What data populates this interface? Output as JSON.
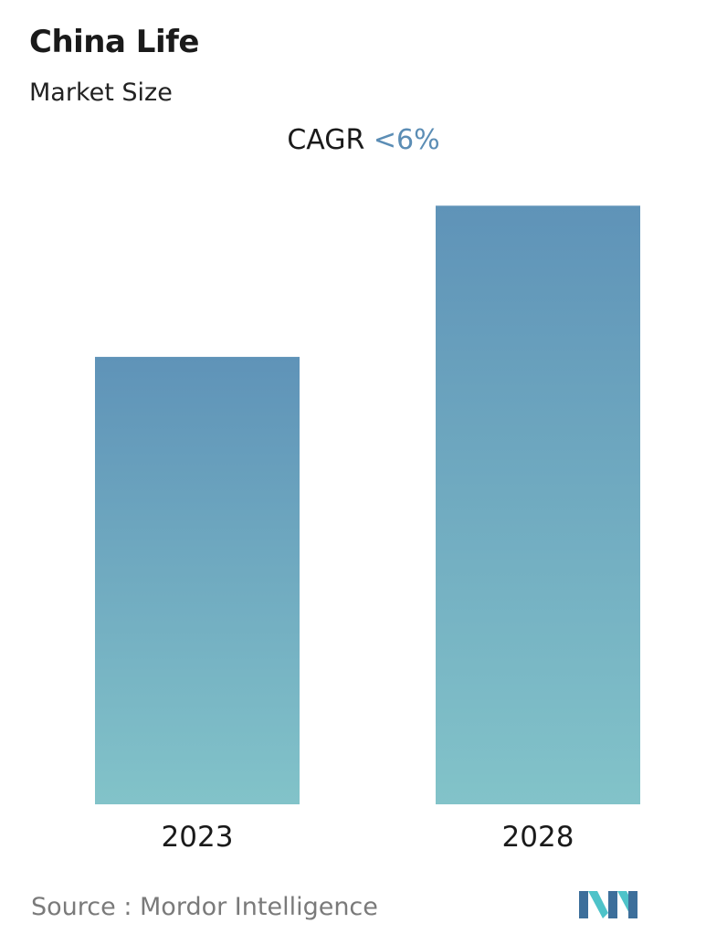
{
  "header": {
    "title": "China Life",
    "subtitle": "Market Size",
    "cagr_label": "CAGR",
    "cagr_value": "<6%"
  },
  "footer": {
    "source_label": "Source :",
    "source_name": "Mordor Intelligence",
    "logo_icon": "mordor-intelligence-logo-icon"
  },
  "colors": {
    "bar_top": "#5f93b8",
    "bar_bottom": "#82c3c9",
    "cagr_value": "#5b8db5",
    "logo_dark": "#3d6f9b",
    "logo_light": "#4ec3c9"
  },
  "chart_data": {
    "type": "bar",
    "categories": [
      "2023",
      "2028"
    ],
    "values": [
      73.7,
      98.6
    ],
    "ylim": [
      0,
      100
    ],
    "grid": false
  }
}
